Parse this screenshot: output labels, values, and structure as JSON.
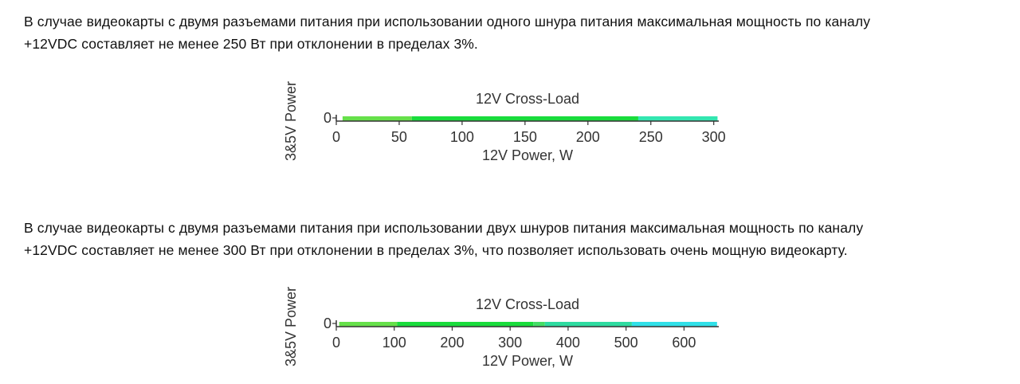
{
  "paragraphs": [
    {
      "line1": "В случае видеокарты с двумя разъемами питания при использовании одного шнура питания максимальная мощность по каналу",
      "line2": "+12VDC составляет не менее 250 Вт при отклонении в пределах 3%."
    },
    {
      "line1": "В случае видеокарты с двумя разъемами питания при использовании двух шнуров питания максимальная мощность по каналу",
      "line2": "+12VDC составляет не менее 300 Вт при отклонении в пределах 3%, что позволяет использовать очень мощную видеокарту."
    }
  ],
  "chart_data": [
    {
      "type": "heatmap",
      "title": "12V Cross-Load",
      "xlabel": "12V Power, W",
      "ylabel": "3&5V Power",
      "xlim": [
        0,
        304
      ],
      "xticks": [
        0,
        50,
        100,
        150,
        200,
        250,
        300
      ],
      "yticks": [
        0
      ],
      "segments": [
        {
          "x0": 5,
          "x1": 60,
          "color": "#66e04a"
        },
        {
          "x0": 60,
          "x1": 240,
          "color": "#19dc3c"
        },
        {
          "x0": 240,
          "x1": 303,
          "color": "#33e6b0"
        }
      ]
    },
    {
      "type": "heatmap",
      "title": "12V Cross-Load",
      "xlabel": "12V Power, W",
      "ylabel": "3&5V Power",
      "xlim": [
        0,
        660
      ],
      "xticks": [
        0,
        100,
        200,
        300,
        400,
        500,
        600
      ],
      "yticks": [
        0
      ],
      "segments": [
        {
          "x0": 5,
          "x1": 105,
          "color": "#66e04a"
        },
        {
          "x0": 105,
          "x1": 340,
          "color": "#19dc3c"
        },
        {
          "x0": 340,
          "x1": 360,
          "color": "#44dd66"
        },
        {
          "x0": 360,
          "x1": 510,
          "color": "#2edba0"
        },
        {
          "x0": 510,
          "x1": 657,
          "color": "#30e0e8"
        }
      ]
    }
  ]
}
